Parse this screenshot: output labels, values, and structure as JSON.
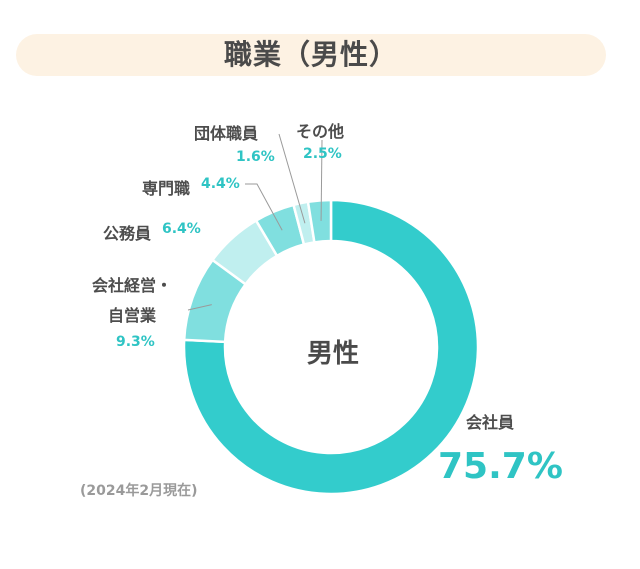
{
  "chart_data": {
    "type": "pie",
    "title": "職業（男性）",
    "center_label": "男性",
    "note": "(2024年2月現在)",
    "categories": [
      "会社員",
      "会社経営・自営業",
      "公務員",
      "専門職",
      "団体職員",
      "その他"
    ],
    "values": [
      75.7,
      9.3,
      6.4,
      4.4,
      1.6,
      2.5
    ],
    "labels": {
      "c0": "会社員",
      "p0": "75.7%",
      "c1a": "会社経営・",
      "c1b": "自営業",
      "p1": "9.3%",
      "c2": "公務員",
      "p2": "6.4%",
      "c3": "専門職",
      "p3": "4.4%",
      "c4": "団体職員",
      "p4": "1.6%",
      "c5": "その他",
      "p5": "2.5%"
    },
    "colors": [
      "#33cccc",
      "#80dfdf",
      "#c0efef",
      "#80dfdf",
      "#c0efef",
      "#80dfdf"
    ]
  }
}
